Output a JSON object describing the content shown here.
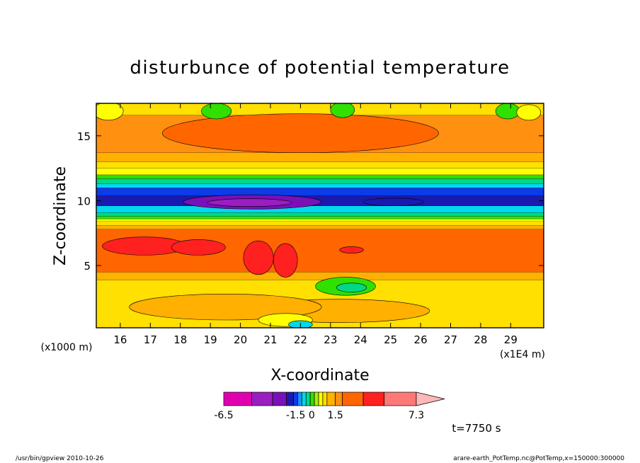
{
  "chart_data": {
    "type": "heatmap",
    "title": "disturbunce of potential temperature",
    "xlabel": "X-coordinate",
    "ylabel": "Z-coordinate",
    "x_unit": "(x1E4 m)",
    "y_unit": "(x1000 m)",
    "xlim": [
      15.2,
      30.1
    ],
    "ylim": [
      0.2,
      17.5
    ],
    "x_ticks": [
      "16",
      "17",
      "18",
      "19",
      "20",
      "21",
      "22",
      "23",
      "24",
      "25",
      "26",
      "27",
      "28",
      "29"
    ],
    "y_ticks": [
      "5",
      "10",
      "15"
    ],
    "x_tick_values": [
      16,
      17,
      18,
      19,
      20,
      21,
      22,
      23,
      24,
      25,
      26,
      27,
      28,
      29
    ],
    "y_tick_values": [
      5,
      10,
      15
    ],
    "bands": [
      {
        "z_min": 0.2,
        "z_max": 3.9,
        "value": 0.6
      },
      {
        "z_min": 3.9,
        "z_max": 4.5,
        "value": 1.2
      },
      {
        "z_min": 4.5,
        "z_max": 7.8,
        "value": 2.8
      },
      {
        "z_min": 7.8,
        "z_max": 8.1,
        "value": 1.2
      },
      {
        "z_min": 8.1,
        "z_max": 8.4,
        "value": 0.7
      },
      {
        "z_min": 8.4,
        "z_max": 8.6,
        "value": 0.3
      },
      {
        "z_min": 8.6,
        "z_max": 8.8,
        "value": -0.1
      },
      {
        "z_min": 8.8,
        "z_max": 9.1,
        "value": -0.5
      },
      {
        "z_min": 9.1,
        "z_max": 9.6,
        "value": -0.9
      },
      {
        "z_min": 9.6,
        "z_max": 10.4,
        "value": -1.6
      },
      {
        "z_min": 10.4,
        "z_max": 11.0,
        "value": -1.3
      },
      {
        "z_min": 11.0,
        "z_max": 11.3,
        "value": -0.9
      },
      {
        "z_min": 11.3,
        "z_max": 11.7,
        "value": -0.5
      },
      {
        "z_min": 11.7,
        "z_max": 12.0,
        "value": -0.1
      },
      {
        "z_min": 12.0,
        "z_max": 12.5,
        "value": 0.3
      },
      {
        "z_min": 12.5,
        "z_max": 13.0,
        "value": 0.7
      },
      {
        "z_min": 13.0,
        "z_max": 13.7,
        "value": 1.2
      },
      {
        "z_min": 13.7,
        "z_max": 16.6,
        "value": 1.8
      },
      {
        "z_min": 16.6,
        "z_max": 17.5,
        "value": 0.7
      }
    ],
    "blobs": [
      {
        "x": 22.0,
        "z": 15.2,
        "rx": 4.6,
        "rz": 1.5,
        "value": 2.8
      },
      {
        "x": 20.4,
        "z": 9.9,
        "rx": 2.3,
        "rz": 0.55,
        "value": -2.2
      },
      {
        "x": 20.3,
        "z": 9.85,
        "rx": 1.4,
        "rz": 0.3,
        "value": -3.5
      },
      {
        "x": 25.1,
        "z": 9.9,
        "rx": 1.0,
        "rz": 0.3,
        "value": -1.6
      },
      {
        "x": 16.8,
        "z": 6.5,
        "rx": 1.4,
        "rz": 0.7,
        "value": 4.2
      },
      {
        "x": 18.6,
        "z": 6.4,
        "rx": 0.9,
        "rz": 0.6,
        "value": 4.2
      },
      {
        "x": 20.6,
        "z": 5.6,
        "rx": 0.5,
        "rz": 1.3,
        "value": 4.2
      },
      {
        "x": 21.5,
        "z": 5.4,
        "rx": 0.4,
        "rz": 1.3,
        "value": 4.2
      },
      {
        "x": 23.7,
        "z": 6.2,
        "rx": 0.4,
        "rz": 0.25,
        "value": 4.2
      },
      {
        "x": 23.5,
        "z": 3.4,
        "rx": 1.0,
        "rz": 0.7,
        "value": -0.1
      },
      {
        "x": 23.7,
        "z": 3.3,
        "rx": 0.5,
        "rz": 0.35,
        "value": -0.5
      },
      {
        "x": 23.3,
        "z": 1.5,
        "rx": 3.0,
        "rz": 0.9,
        "value": 1.2
      },
      {
        "x": 19.5,
        "z": 1.8,
        "rx": 3.2,
        "rz": 1.0,
        "value": 1.2
      },
      {
        "x": 21.5,
        "z": 0.8,
        "rx": 0.9,
        "rz": 0.5,
        "value": 0.3
      },
      {
        "x": 22.0,
        "z": 0.45,
        "rx": 0.4,
        "rz": 0.3,
        "value": -0.9
      },
      {
        "x": 15.6,
        "z": 16.9,
        "rx": 0.5,
        "rz": 0.7,
        "value": 0.3
      },
      {
        "x": 19.2,
        "z": 16.9,
        "rx": 0.5,
        "rz": 0.6,
        "value": -0.1
      },
      {
        "x": 23.4,
        "z": 17.0,
        "rx": 0.4,
        "rz": 0.6,
        "value": -0.1
      },
      {
        "x": 28.9,
        "z": 16.9,
        "rx": 0.4,
        "rz": 0.6,
        "value": -0.1
      },
      {
        "x": 29.6,
        "z": 16.8,
        "rx": 0.4,
        "rz": 0.6,
        "value": 0.3
      }
    ],
    "colorbar": {
      "labels": [
        "-6.5",
        "-1.5 0",
        "1.5",
        "7.3"
      ],
      "label_values": [
        -6.5,
        -1.0,
        1.5,
        7.3
      ],
      "levels": [
        -6.5,
        -4.5,
        -3.0,
        -2.0,
        -1.5,
        -1.2,
        -0.9,
        -0.6,
        -0.3,
        0,
        0.3,
        0.6,
        0.9,
        1.5,
        2.0,
        3.5,
        5.0,
        7.3
      ],
      "colors": [
        "#e000b0",
        "#9a1ec0",
        "#7a10b8",
        "#1a1ab0",
        "#0a3ce8",
        "#1a90ff",
        "#00d8f0",
        "#00d888",
        "#30e000",
        "#a8f000",
        "#ffff00",
        "#ffe000",
        "#ffb000",
        "#ff9010",
        "#ff6600",
        "#ff2020",
        "#ff7878"
      ],
      "overflow_color": "#ffb8b8"
    }
  },
  "time_label": "t=7750 s",
  "footer": {
    "left": "/usr/bin/gpview  2010-10-26",
    "right": "arare-earth_PotTemp.nc@PotTemp,x=150000:300000"
  }
}
